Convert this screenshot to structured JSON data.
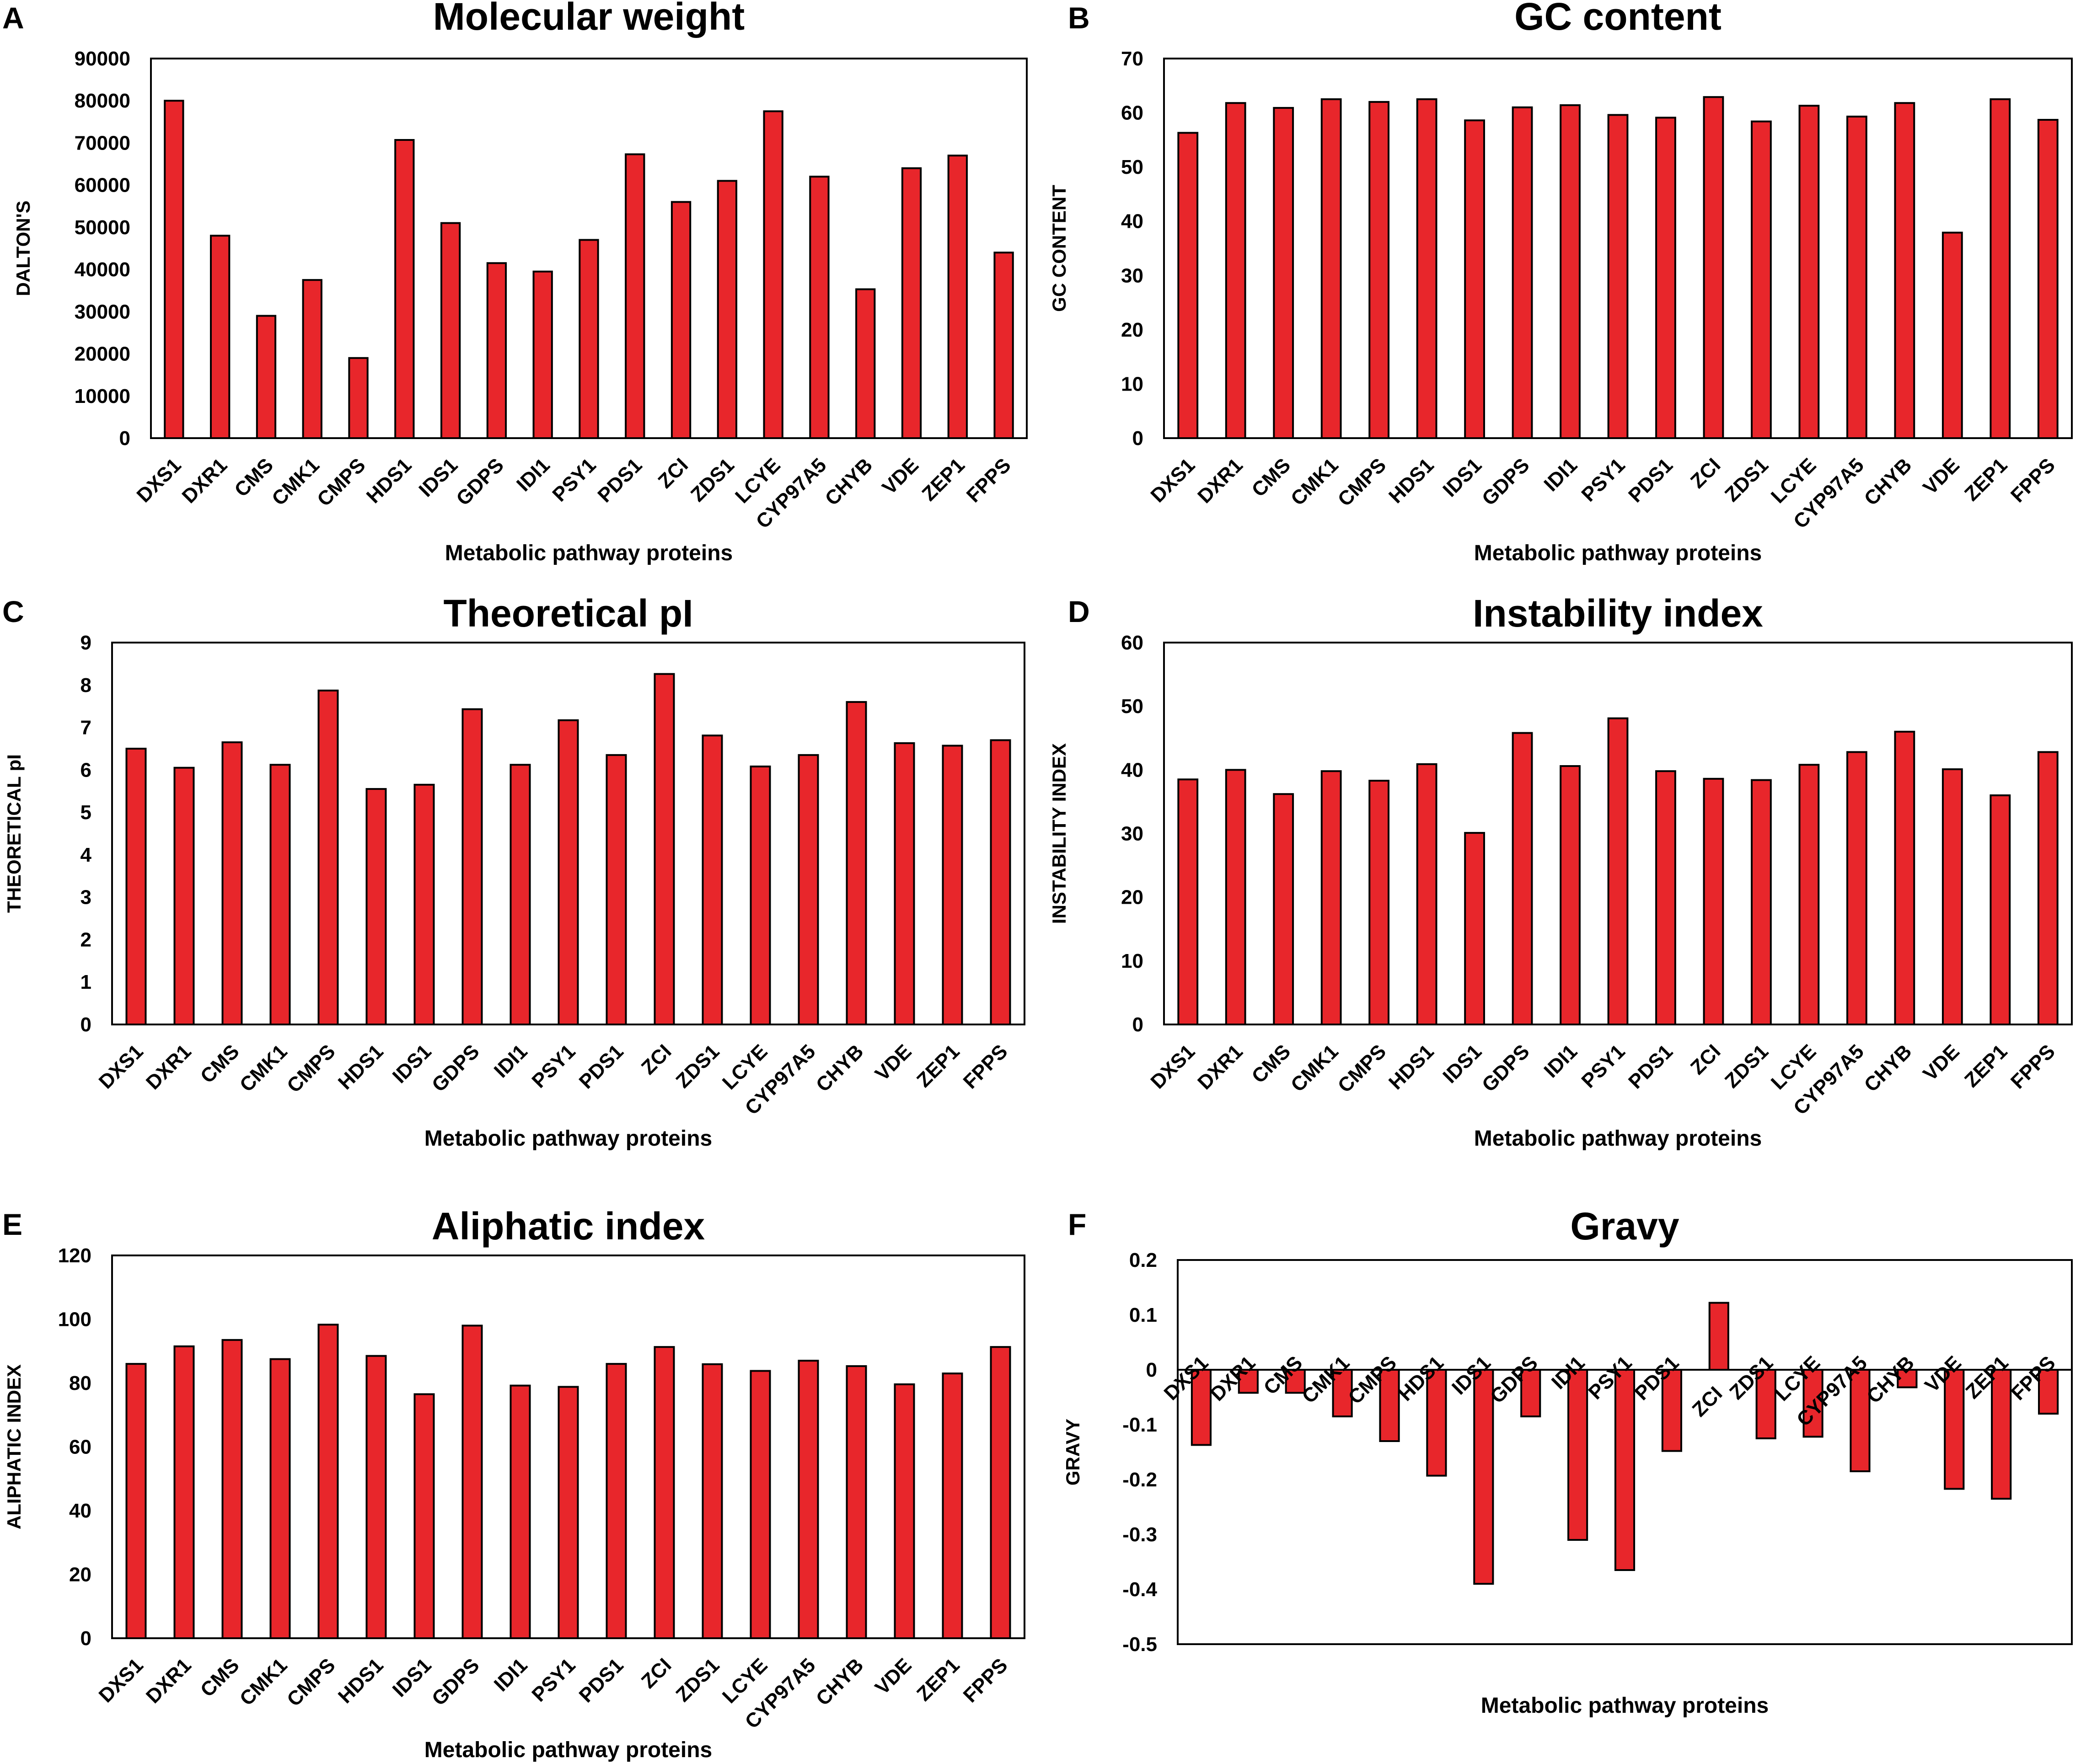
{
  "chart_data": [
    {
      "panel": "A",
      "type": "bar",
      "title": "Molecular weight",
      "xlabel": "Metabolic pathway proteins",
      "ylabel": "DALTON'S",
      "ylim": [
        0,
        90000
      ],
      "yticks": [
        0,
        10000,
        20000,
        30000,
        40000,
        50000,
        60000,
        70000,
        80000,
        90000
      ],
      "categories": [
        "DXS1",
        "DXR1",
        "CMS",
        "CMK1",
        "CMPS",
        "HDS1",
        "IDS1",
        "GDPS",
        "IDI1",
        "PSY1",
        "PDS1",
        "ZCI",
        "ZDS1",
        "LCYE",
        "CYP97A5",
        "CHYB",
        "VDE",
        "ZEP1",
        "FPPS"
      ],
      "values": [
        80000,
        48000,
        29000,
        37500,
        19000,
        70700,
        51000,
        41500,
        39500,
        47000,
        67300,
        56000,
        61000,
        77500,
        62000,
        35300,
        64000,
        67000,
        44000
      ],
      "bar_color": "#e8262b"
    },
    {
      "panel": "B",
      "type": "bar",
      "title": "GC content",
      "xlabel": "Metabolic pathway proteins",
      "ylabel": "GC CONTENT",
      "ylim": [
        0,
        70
      ],
      "yticks": [
        0,
        10,
        20,
        30,
        40,
        50,
        60,
        70
      ],
      "categories": [
        "DXS1",
        "DXR1",
        "CMS",
        "CMK1",
        "CMPS",
        "HDS1",
        "IDS1",
        "GDPS",
        "IDI1",
        "PSY1",
        "PDS1",
        "ZCI",
        "ZDS1",
        "LCYE",
        "CYP97A5",
        "CHYB",
        "VDE",
        "ZEP1",
        "FPPS"
      ],
      "values": [
        56.3,
        61.8,
        60.9,
        62.5,
        62.0,
        62.5,
        58.6,
        61.0,
        61.4,
        59.6,
        59.1,
        62.9,
        58.4,
        61.3,
        59.3,
        61.8,
        37.9,
        62.5,
        58.7
      ],
      "bar_color": "#e8262b"
    },
    {
      "panel": "C",
      "type": "bar",
      "title": "Theoretical pI",
      "xlabel": "Metabolic pathway proteins",
      "ylabel": "THEORETICAL pI",
      "ylim": [
        0,
        9
      ],
      "yticks": [
        0,
        1,
        2,
        3,
        4,
        5,
        6,
        7,
        8,
        9
      ],
      "categories": [
        "DXS1",
        "DXR1",
        "CMS",
        "CMK1",
        "CMPS",
        "HDS1",
        "IDS1",
        "GDPS",
        "IDI1",
        "PSY1",
        "PDS1",
        "ZCI",
        "ZDS1",
        "LCYE",
        "CYP97A5",
        "CHYB",
        "VDE",
        "ZEP1",
        "FPPS"
      ],
      "values": [
        6.5,
        6.05,
        6.65,
        6.12,
        7.87,
        5.55,
        5.65,
        7.43,
        6.12,
        7.17,
        6.35,
        8.26,
        6.81,
        6.08,
        6.35,
        7.6,
        6.63,
        6.57,
        6.7
      ],
      "bar_color": "#e8262b"
    },
    {
      "panel": "D",
      "type": "bar",
      "title": "Instability index",
      "xlabel": "Metabolic pathway proteins",
      "ylabel": "INSTABILITY INDEX",
      "ylim": [
        0,
        60
      ],
      "yticks": [
        0,
        10,
        20,
        30,
        40,
        50,
        60
      ],
      "categories": [
        "DXS1",
        "DXR1",
        "CMS",
        "CMK1",
        "CMPS",
        "HDS1",
        "IDS1",
        "GDPS",
        "IDI1",
        "PSY1",
        "PDS1",
        "ZCI",
        "ZDS1",
        "LCYE",
        "CYP97A5",
        "CHYB",
        "VDE",
        "ZEP1",
        "FPPS"
      ],
      "values": [
        38.5,
        40.0,
        36.2,
        39.8,
        38.3,
        40.9,
        30.1,
        45.8,
        40.6,
        48.1,
        39.8,
        38.6,
        38.4,
        40.8,
        42.8,
        46.0,
        40.1,
        36.0,
        42.8
      ],
      "bar_color": "#e8262b"
    },
    {
      "panel": "E",
      "type": "bar",
      "title": "Aliphatic index",
      "xlabel": "Metabolic pathway proteins",
      "ylabel": "ALIPHATIC INDEX",
      "ylim": [
        0,
        120
      ],
      "yticks": [
        0,
        20,
        40,
        60,
        80,
        100,
        120
      ],
      "categories": [
        "DXS1",
        "DXR1",
        "CMS",
        "CMK1",
        "CMPS",
        "HDS1",
        "IDS1",
        "GDPS",
        "IDI1",
        "PSY1",
        "PDS1",
        "ZCI",
        "ZDS1",
        "LCYE",
        "CYP97A5",
        "CHYB",
        "VDE",
        "ZEP1",
        "FPPS"
      ],
      "values": [
        86,
        91.5,
        93.5,
        87.5,
        98.3,
        88.5,
        76.5,
        98,
        79.2,
        78.8,
        86,
        91.3,
        85.9,
        83.8,
        87,
        85.3,
        79.6,
        83,
        91.3
      ],
      "bar_color": "#e8262b"
    },
    {
      "panel": "F",
      "type": "bar",
      "title": "Gravy",
      "xlabel": "Metabolic pathway proteins",
      "ylabel": "GRAVY",
      "ylim": [
        -0.5,
        0.2
      ],
      "yticks": [
        -0.5,
        -0.4,
        -0.3,
        -0.2,
        -0.1,
        0,
        0.1,
        0.2
      ],
      "categories": [
        "DXS1",
        "DXR1",
        "CMS",
        "CMK1",
        "CMPS",
        "HDS1",
        "IDS1",
        "GDPS",
        "IDI1",
        "PSY1",
        "PDS1",
        "ZCI",
        "ZDS1",
        "LCYE",
        "CYP97A5",
        "CHYB",
        "VDE",
        "ZEP1",
        "FPPS"
      ],
      "values": [
        -0.137,
        -0.042,
        -0.042,
        -0.085,
        -0.13,
        -0.193,
        -0.39,
        -0.085,
        -0.31,
        -0.365,
        -0.148,
        0.122,
        -0.125,
        -0.122,
        -0.185,
        -0.032,
        -0.217,
        -0.235,
        -0.08
      ],
      "bar_color": "#e8262b"
    }
  ]
}
